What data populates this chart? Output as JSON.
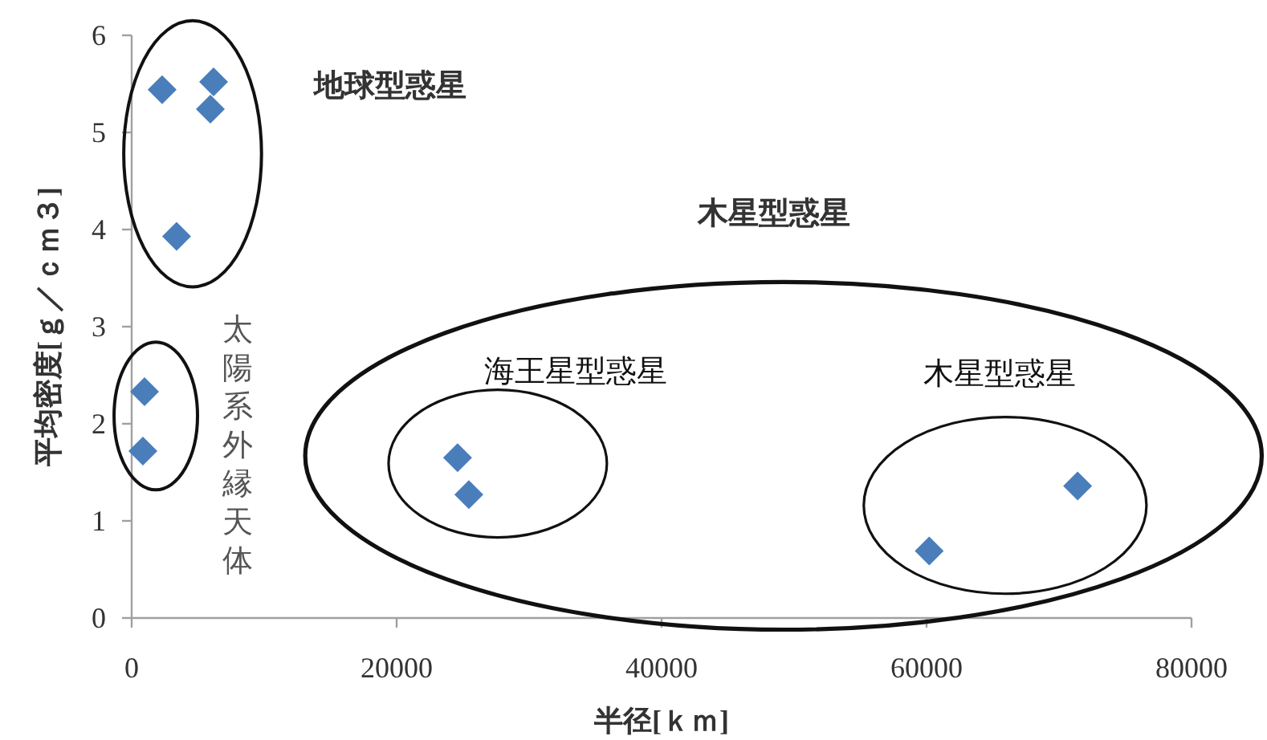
{
  "chart_data": {
    "type": "scatter",
    "xlabel": "半径[ｋｍ]",
    "ylabel": "平均密度[ｇ／ｃｍ３]",
    "x": [
      2300,
      6180,
      5940,
      3390,
      970,
      850,
      24600,
      25450,
      60200,
      71400
    ],
    "values": [
      5.44,
      5.52,
      5.24,
      3.93,
      2.33,
      1.72,
      1.65,
      1.27,
      0.69,
      1.36
    ],
    "color": "#4a7ebb",
    "marker": "diamond",
    "xlim": [
      0,
      80000
    ],
    "xticks": [
      0,
      20000,
      40000,
      60000,
      80000
    ],
    "ylim": [
      0,
      6
    ],
    "yticks": [
      0,
      1,
      2,
      3,
      4,
      5,
      6
    ],
    "grid": false,
    "annotations": [
      "地球型惑星",
      "木星型惑星",
      "海王星型惑星",
      "木星型惑星",
      "太陽系外縁天体"
    ]
  }
}
